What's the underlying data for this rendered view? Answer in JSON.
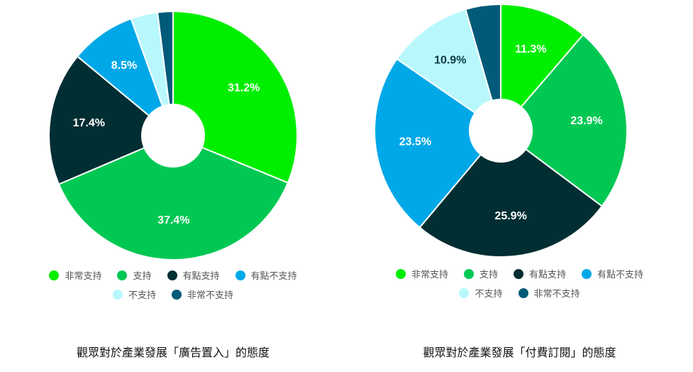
{
  "colors": {
    "非常支持": "#00ee00",
    "支持": "#00c853",
    "有點支持": "#002e32",
    "有點不支持": "#00a8e8",
    "不支持": "#b8f8fc",
    "非常不支持": "#005a78"
  },
  "legend_order": [
    "非常支持",
    "支持",
    "有點支持",
    "有點不支持",
    "不支持",
    "非常不支持"
  ],
  "chart_data": [
    {
      "type": "pie",
      "donut": true,
      "title": "觀眾對於產業發展「廣告置入」的態度",
      "categories": [
        "非常支持",
        "支持",
        "有點支持",
        "有點不支持",
        "不支持",
        "非常不支持"
      ],
      "values": [
        31.2,
        37.4,
        17.4,
        8.5,
        3.5,
        2.0
      ],
      "labels": [
        "31.2%",
        "37.4%",
        "17.4%",
        "8.5%",
        "",
        ""
      ],
      "legend": "bottom"
    },
    {
      "type": "pie",
      "donut": true,
      "title": "觀眾對於產業發展「付費訂閱」的態度",
      "categories": [
        "非常支持",
        "支持",
        "有點支持",
        "有點不支持",
        "不支持",
        "非常不支持"
      ],
      "values": [
        11.3,
        23.9,
        25.9,
        23.5,
        10.9,
        4.5
      ],
      "labels": [
        "11.3%",
        "23.9%",
        "25.9%",
        "23.5%",
        "10.9%",
        ""
      ],
      "legend": "bottom"
    }
  ]
}
